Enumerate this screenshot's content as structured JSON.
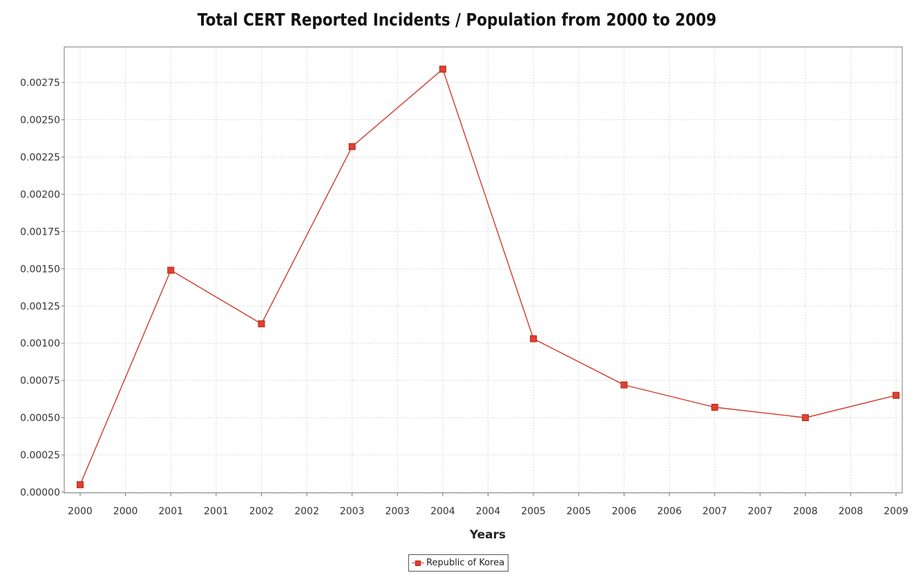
{
  "chart_data": {
    "type": "line",
    "title": "Total CERT Reported Incidents / Population from 2000 to 2009",
    "xlabel": "Years",
    "ylabel": "",
    "x_tick_labels": [
      "2000",
      "2000",
      "2001",
      "2001",
      "2002",
      "2002",
      "2003",
      "2003",
      "2004",
      "2004",
      "2005",
      "2005",
      "2006",
      "2006",
      "2007",
      "2007",
      "2008",
      "2008",
      "2009"
    ],
    "x": [
      2000,
      2001,
      2002,
      2003,
      2004,
      2005,
      2006,
      2007,
      2008,
      2009
    ],
    "xlim": [
      2000,
      2009
    ],
    "ylim": [
      0,
      0.00285
    ],
    "y_ticks": [
      0.0,
      0.00025,
      0.0005,
      0.00075,
      0.001,
      0.00125,
      0.0015,
      0.00175,
      0.002,
      0.00225,
      0.0025,
      0.00275
    ],
    "y_tick_labels": [
      "0.00000",
      "0.00025",
      "0.00050",
      "0.00075",
      "0.00100",
      "0.00125",
      "0.00150",
      "0.00175",
      "0.00200",
      "0.00225",
      "0.00250",
      "0.00275"
    ],
    "grid": true,
    "legend_position": "bottom-center",
    "series": [
      {
        "name": "Republic of Korea",
        "color": "#d03a2a",
        "marker": "square",
        "values": [
          5e-05,
          0.00149,
          0.00113,
          0.00232,
          0.00284,
          0.00103,
          0.00072,
          0.00057,
          0.0005,
          0.00065
        ]
      }
    ]
  }
}
